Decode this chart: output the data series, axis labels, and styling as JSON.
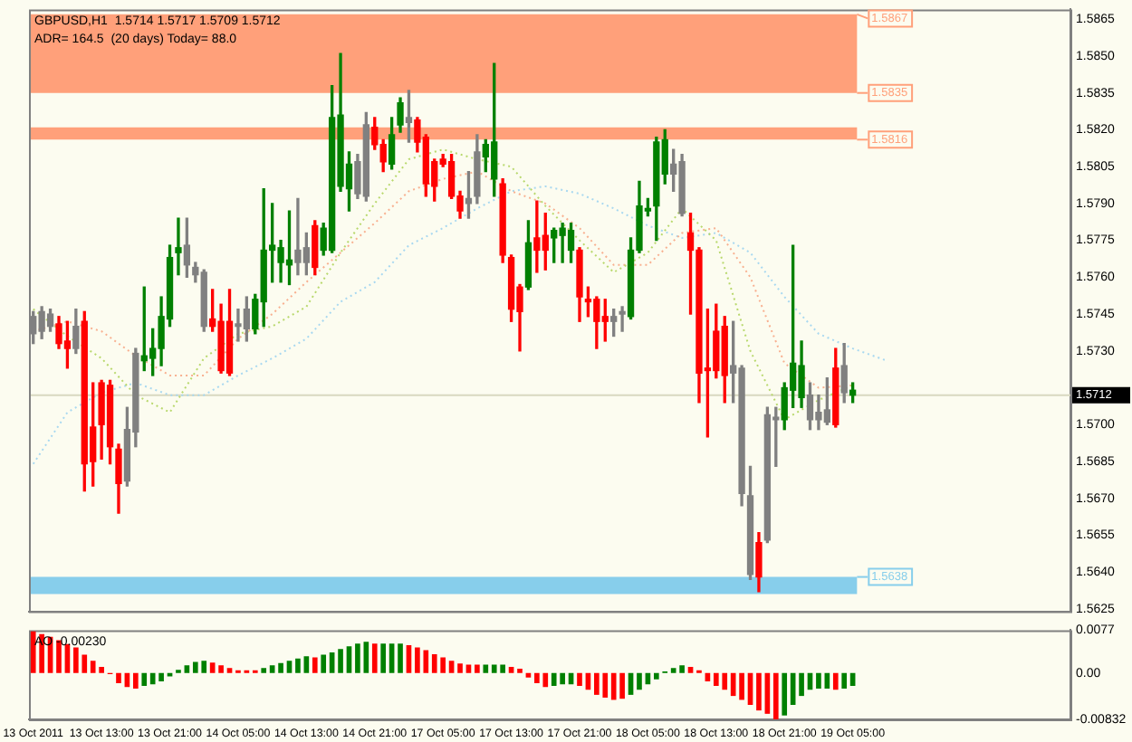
{
  "chart_data": [
    {
      "type": "candlestick",
      "title": "GBPUSD,H1  1.5714 1.5717 1.5709 1.5712",
      "annotations": [
        "ADR= 164.5  (20 days) Today= 88.0",
        "1.5867"
      ],
      "ohlc": [
        [
          1.5744,
          1.5746,
          1.5733,
          1.5737
        ],
        [
          1.5738,
          1.5748,
          1.5735,
          1.5746
        ],
        [
          1.5745,
          1.5747,
          1.5738,
          1.574
        ],
        [
          1.5741,
          1.5744,
          1.5731,
          1.5733
        ],
        [
          1.5734,
          1.5742,
          1.5723,
          1.5731
        ],
        [
          1.5731,
          1.5747,
          1.5729,
          1.574
        ],
        [
          1.5742,
          1.5746,
          1.5673,
          1.5684
        ],
        [
          1.5699,
          1.5717,
          1.5675,
          1.5685
        ],
        [
          1.5717,
          1.5718,
          1.5686,
          1.57
        ],
        [
          1.5716,
          1.5718,
          1.5684,
          1.5691
        ],
        [
          1.569,
          1.5692,
          1.5664,
          1.5676
        ],
        [
          1.5677,
          1.5707,
          1.5675,
          1.5698
        ],
        [
          1.5697,
          1.5731,
          1.5691,
          1.5729
        ],
        [
          1.5726,
          1.5756,
          1.5722,
          1.5728
        ],
        [
          1.5727,
          1.5739,
          1.572,
          1.5731
        ],
        [
          1.5731,
          1.5752,
          1.5724,
          1.5744
        ],
        [
          1.5743,
          1.5773,
          1.574,
          1.5768
        ],
        [
          1.577,
          1.5784,
          1.5761,
          1.5772
        ],
        [
          1.5773,
          1.5784,
          1.576,
          1.5765
        ],
        [
          1.5764,
          1.5766,
          1.5758,
          1.5761
        ],
        [
          1.5762,
          1.5763,
          1.5738,
          1.574
        ],
        [
          1.5743,
          1.5755,
          1.5738,
          1.574
        ],
        [
          1.5742,
          1.5749,
          1.5721,
          1.5722
        ],
        [
          1.5742,
          1.5755,
          1.572,
          1.5721
        ],
        [
          1.5741,
          1.5747,
          1.5734,
          1.574
        ],
        [
          1.5739,
          1.5752,
          1.5734,
          1.5747
        ],
        [
          1.5739,
          1.5753,
          1.5737,
          1.5751
        ],
        [
          1.575,
          1.5796,
          1.574,
          1.5771
        ],
        [
          1.5771,
          1.579,
          1.5758,
          1.5773
        ],
        [
          1.5766,
          1.5775,
          1.5758,
          1.5772
        ],
        [
          1.5765,
          1.5787,
          1.5757,
          1.5767
        ],
        [
          1.5766,
          1.5792,
          1.5761,
          1.5771
        ],
        [
          1.5766,
          1.5778,
          1.5761,
          1.5772
        ],
        [
          1.5781,
          1.5783,
          1.5761,
          1.5764
        ],
        [
          1.5771,
          1.5782,
          1.5769,
          1.578
        ],
        [
          1.5771,
          1.5838,
          1.577,
          1.5825
        ],
        [
          1.5797,
          1.5851,
          1.5795,
          1.5826
        ],
        [
          1.5796,
          1.5811,
          1.5787,
          1.5806
        ],
        [
          1.5794,
          1.581,
          1.5792,
          1.5807
        ],
        [
          1.5793,
          1.5827,
          1.5791,
          1.5822
        ],
        [
          1.5821,
          1.5825,
          1.5812,
          1.5814
        ],
        [
          1.5814,
          1.5816,
          1.5803,
          1.5807
        ],
        [
          1.5806,
          1.5825,
          1.5804,
          1.5818
        ],
        [
          1.5822,
          1.5833,
          1.5819,
          1.5831
        ],
        [
          1.5825,
          1.5836,
          1.5815,
          1.5823
        ],
        [
          1.5824,
          1.5825,
          1.5811,
          1.5815
        ],
        [
          1.5817,
          1.5818,
          1.5793,
          1.5798
        ],
        [
          1.5807,
          1.5808,
          1.5791,
          1.5797
        ],
        [
          1.5808,
          1.581,
          1.5805,
          1.5806
        ],
        [
          1.5807,
          1.581,
          1.5792,
          1.5793
        ],
        [
          1.5793,
          1.5795,
          1.5784,
          1.5787
        ],
        [
          1.579,
          1.5803,
          1.5784,
          1.5792
        ],
        [
          1.5793,
          1.5818,
          1.579,
          1.5811
        ],
        [
          1.5809,
          1.5816,
          1.5803,
          1.5814
        ],
        [
          1.58,
          1.5847,
          1.5793,
          1.5815
        ],
        [
          1.5798,
          1.58,
          1.5766,
          1.5769
        ],
        [
          1.5768,
          1.5769,
          1.5742,
          1.5747
        ],
        [
          1.5756,
          1.5757,
          1.573,
          1.5746
        ],
        [
          1.5756,
          1.5783,
          1.5755,
          1.5774
        ],
        [
          1.5776,
          1.5791,
          1.5762,
          1.5771
        ],
        [
          1.5777,
          1.5786,
          1.5763,
          1.5771
        ],
        [
          1.5776,
          1.578,
          1.5766,
          1.5779
        ],
        [
          1.5777,
          1.5782,
          1.5766,
          1.578
        ],
        [
          1.5771,
          1.5782,
          1.5766,
          1.5779
        ],
        [
          1.5771,
          1.5772,
          1.5742,
          1.5752
        ],
        [
          1.5751,
          1.5756,
          1.5744,
          1.575
        ],
        [
          1.5751,
          1.5752,
          1.5731,
          1.5742
        ],
        [
          1.5744,
          1.5751,
          1.5734,
          1.5742
        ],
        [
          1.5742,
          1.5747,
          1.5736,
          1.5744
        ],
        [
          1.5745,
          1.5748,
          1.5738,
          1.5746
        ],
        [
          1.5744,
          1.5776,
          1.5743,
          1.5771
        ],
        [
          1.5771,
          1.5799,
          1.577,
          1.5789
        ],
        [
          1.5787,
          1.5792,
          1.5785,
          1.5788
        ],
        [
          1.5789,
          1.5817,
          1.5775,
          1.5815
        ],
        [
          1.5802,
          1.582,
          1.5798,
          1.5816
        ],
        [
          1.5806,
          1.5812,
          1.5795,
          1.5802
        ],
        [
          1.5807,
          1.581,
          1.5785,
          1.5786
        ],
        [
          1.5778,
          1.5786,
          1.5745,
          1.5771
        ],
        [
          1.5771,
          1.5772,
          1.5709,
          1.5721
        ],
        [
          1.5723,
          1.5747,
          1.5695,
          1.5722
        ],
        [
          1.5738,
          1.5749,
          1.5719,
          1.5722
        ],
        [
          1.574,
          1.5744,
          1.5709,
          1.572
        ],
        [
          1.5724,
          1.5742,
          1.5709,
          1.5721
        ],
        [
          1.5723,
          1.5724,
          1.5667,
          1.5672
        ],
        [
          1.5671,
          1.5683,
          1.5637,
          1.5639
        ],
        [
          1.5652,
          1.5656,
          1.5632,
          1.5638
        ],
        [
          1.5653,
          1.5707,
          1.5652,
          1.5704
        ],
        [
          1.5702,
          1.5707,
          1.5683,
          1.5703
        ],
        [
          1.5702,
          1.5717,
          1.5698,
          1.5715
        ],
        [
          1.5714,
          1.5773,
          1.5707,
          1.5725
        ],
        [
          1.5711,
          1.5734,
          1.5707,
          1.5724
        ],
        [
          1.5712,
          1.5717,
          1.5698,
          1.5702
        ],
        [
          1.5702,
          1.5712,
          1.5698,
          1.5705
        ],
        [
          1.5706,
          1.5719,
          1.57,
          1.5701
        ],
        [
          1.5723,
          1.5731,
          1.5699,
          1.57
        ],
        [
          1.5724,
          1.5733,
          1.5709,
          1.5713
        ],
        [
          1.5712,
          1.5717,
          1.5709,
          1.5714
        ],
        null,
        null,
        null,
        null,
        null,
        null,
        null,
        null,
        null,
        null,
        null,
        null,
        null,
        null,
        null,
        null,
        null,
        null,
        null,
        null,
        null,
        null,
        null,
        null,
        null
      ],
      "colors": [
        "#808080",
        "#808080",
        "#808080",
        "#ff0000",
        "#ff0000",
        "#808080",
        "#ff0000",
        "#ff0000",
        "#ff0000",
        "#ff0000",
        "#ff0000",
        "#808080",
        "#808080",
        "#008000",
        "#008000",
        "#008000",
        "#008000",
        "#008000",
        "#808080",
        "#808080",
        "#808080",
        "#ff0000",
        "#ff0000",
        "#ff0000",
        "#808080",
        "#808080",
        "#008000",
        "#008000",
        "#008000",
        "#008000",
        "#008000",
        "#808080",
        "#808080",
        "#ff0000",
        "#008000",
        "#008000",
        "#008000",
        "#008000",
        "#808080",
        "#808080",
        "#ff0000",
        "#ff0000",
        "#008000",
        "#008000",
        "#808080",
        "#ff0000",
        "#ff0000",
        "#ff0000",
        "#ff0000",
        "#ff0000",
        "#ff0000",
        "#808080",
        "#808080",
        "#008000",
        "#008000",
        "#ff0000",
        "#ff0000",
        "#ff0000",
        "#008000",
        "#ff0000",
        "#ff0000",
        "#008000",
        "#008000",
        "#008000",
        "#ff0000",
        "#ff0000",
        "#ff0000",
        "#ff0000",
        "#808080",
        "#808080",
        "#008000",
        "#008000",
        "#008000",
        "#008000",
        "#008000",
        "#808080",
        "#808080",
        "#ff0000",
        "#ff0000",
        "#ff0000",
        "#ff0000",
        "#ff0000",
        "#808080",
        "#808080",
        "#808080",
        "#ff0000",
        "#808080",
        "#808080",
        "#008000",
        "#008000",
        "#008000",
        "#808080",
        "#808080",
        "#808080",
        "#ff0000",
        "#808080",
        "#008000",
        null,
        null,
        null,
        null,
        null,
        null,
        null,
        null,
        null,
        null,
        null,
        null,
        null,
        null,
        null,
        null,
        null,
        null,
        null,
        null,
        null,
        null,
        null,
        null,
        null
      ],
      "series": [
        {
          "type": "line",
          "color": "#b8d86c",
          "line_style": "dotted",
          "values": [
            1.5747,
            null,
            null,
            null,
            1.5736,
            null,
            null,
            null,
            1.5727,
            null,
            null,
            null,
            1.5712,
            null,
            null,
            null,
            1.5705,
            null,
            null,
            null,
            1.5727,
            null,
            null,
            null,
            1.5737,
            null,
            null,
            null,
            1.574,
            null,
            null,
            null,
            1.5748,
            null,
            null,
            null,
            1.577,
            null,
            null,
            null,
            1.579,
            null,
            null,
            null,
            1.5808,
            null,
            null,
            null,
            1.5812,
            null,
            null,
            null,
            1.5808,
            null,
            null,
            null,
            1.5805,
            null,
            null,
            null,
            1.5789,
            null,
            null,
            null,
            1.5775,
            null,
            null,
            null,
            1.5762,
            null,
            null,
            null,
            1.577,
            null,
            null,
            null,
            1.5788,
            null,
            null,
            null,
            1.5775,
            null,
            null,
            null,
            1.573,
            null,
            null,
            null,
            1.5702,
            null,
            null,
            null,
            1.571,
            null,
            null,
            null,
            1.5716,
            null,
            null,
            null,
            null,
            null,
            null,
            null,
            null,
            null,
            null,
            null,
            null,
            null,
            null,
            null,
            null,
            null,
            null,
            null,
            null,
            null,
            null,
            null,
            null,
            null
          ]
        },
        {
          "type": "line",
          "color": "#f8b090",
          "line_style": "dotted",
          "values": [
            1.5738,
            null,
            null,
            null,
            1.5742,
            null,
            null,
            null,
            1.5738,
            null,
            null,
            null,
            1.5728,
            null,
            null,
            null,
            1.572,
            null,
            null,
            null,
            1.572,
            null,
            null,
            null,
            1.5735,
            null,
            null,
            null,
            1.5745,
            null,
            null,
            null,
            1.5758,
            null,
            null,
            null,
            1.577,
            null,
            null,
            null,
            1.5782,
            null,
            null,
            null,
            1.5795,
            null,
            null,
            null,
            1.58,
            null,
            null,
            null,
            1.5803,
            null,
            null,
            null,
            1.5795,
            null,
            null,
            null,
            1.579,
            null,
            null,
            null,
            1.578,
            null,
            null,
            null,
            1.5765,
            null,
            null,
            null,
            1.5765,
            null,
            null,
            null,
            1.5778,
            null,
            null,
            null,
            1.578,
            null,
            null,
            null,
            1.576,
            null,
            null,
            null,
            1.5725,
            null,
            null,
            null,
            1.5715,
            null,
            null,
            null,
            1.5716,
            null,
            null,
            null,
            null,
            null,
            null,
            null,
            null,
            null,
            null,
            null,
            null,
            null,
            null,
            null,
            null,
            null,
            null,
            null,
            null,
            null,
            null,
            null,
            null,
            null
          ]
        },
        {
          "type": "line",
          "color": "#a8d8f0",
          "line_style": "dotted",
          "values": [
            1.5684,
            null,
            null,
            null,
            1.5705,
            null,
            null,
            null,
            1.5713,
            null,
            null,
            null,
            1.5717,
            null,
            null,
            null,
            1.5712,
            null,
            null,
            null,
            1.5712,
            null,
            null,
            null,
            1.572,
            null,
            null,
            null,
            1.5727,
            null,
            null,
            null,
            1.5735,
            null,
            null,
            null,
            1.575,
            null,
            null,
            null,
            1.5758,
            null,
            null,
            null,
            1.5773,
            null,
            null,
            null,
            1.578,
            null,
            null,
            null,
            1.5788,
            null,
            null,
            null,
            1.5795,
            null,
            null,
            null,
            1.5797,
            null,
            null,
            null,
            1.5794,
            null,
            null,
            null,
            1.5788,
            null,
            null,
            null,
            1.5781,
            null,
            null,
            null,
            1.5776,
            null,
            null,
            null,
            1.5778,
            null,
            null,
            null,
            1.577,
            null,
            null,
            null,
            1.5752,
            null,
            null,
            null,
            1.5737,
            null,
            null,
            null,
            1.5731,
            null,
            null,
            null,
            1.5726,
            null,
            null,
            null,
            null,
            null,
            null,
            null,
            null,
            null,
            null,
            null,
            null,
            null,
            null,
            null,
            null,
            null,
            null,
            null,
            null,
            null
          ]
        }
      ],
      "ylim": [
        1.5624,
        1.5869
      ],
      "yticks": [
        1.5625,
        {
          "value": 1.564,
          "label": "1.5640"
        },
        1.5655,
        {
          "value": 1.567,
          "label": "1.5670"
        },
        1.5685,
        {
          "value": 1.57,
          "label": "1.5700"
        },
        {
          "value": 1.573,
          "label": "1.5730"
        },
        1.5745,
        {
          "value": 1.576,
          "label": "1.5760"
        },
        1.5775,
        {
          "value": 1.579,
          "label": "1.5790"
        },
        1.5805,
        {
          "value": 1.582,
          "label": "1.5820"
        },
        1.5835,
        {
          "value": 1.585,
          "label": "1.5850"
        },
        1.5865
      ],
      "bands": [
        {
          "axis": "y",
          "from": 1.5835,
          "to": 1.5867,
          "label": "1.5835",
          "color": "#ffa07a"
        },
        {
          "axis": "y",
          "from": 1.5816,
          "to": 1.5821,
          "label": "1.5816",
          "color": "#ffa07a"
        },
        {
          "axis": "y",
          "from": 1.5638,
          "to": 1.5631,
          "label": "1.5638",
          "color": "#87ceeb"
        }
      ],
      "ref_lines": [
        {
          "axis": "y",
          "value": 1.5712,
          "label": "1.5712",
          "color": "#d8d8c0"
        }
      ],
      "tick_labels": "y",
      "grid": false,
      "legend": false
    },
    {
      "type": "bar",
      "title": "AO -0.00230",
      "categories": [
        "13 Oct 2011",
        null,
        null,
        null,
        null,
        null,
        null,
        null,
        "13 Oct 13:00",
        null,
        null,
        null,
        null,
        null,
        null,
        null,
        "13 Oct 21:00",
        null,
        null,
        null,
        null,
        null,
        null,
        null,
        "14 Oct 05:00",
        null,
        null,
        null,
        null,
        null,
        null,
        null,
        "14 Oct 13:00",
        null,
        null,
        null,
        null,
        null,
        null,
        null,
        "14 Oct 21:00",
        null,
        null,
        null,
        null,
        null,
        null,
        null,
        "17 Oct 05:00",
        null,
        null,
        null,
        null,
        null,
        null,
        null,
        "17 Oct 13:00",
        null,
        null,
        null,
        null,
        null,
        null,
        null,
        "17 Oct 21:00",
        null,
        null,
        null,
        null,
        null,
        null,
        null,
        "18 Oct 05:00",
        null,
        null,
        null,
        null,
        null,
        null,
        null,
        "18 Oct 13:00",
        null,
        null,
        null,
        null,
        null,
        null,
        null,
        "18 Oct 21:00",
        null,
        null,
        null,
        null,
        null,
        null,
        null,
        "19 Oct 05:00",
        null,
        null,
        null,
        null,
        null,
        null,
        null,
        null,
        null,
        null,
        null,
        null,
        null,
        null,
        null,
        null,
        null,
        null,
        null,
        null,
        null,
        null,
        null,
        null,
        null
      ],
      "values": [
        0.0075,
        0.007,
        0.0065,
        0.0059,
        0.0052,
        0.0046,
        0.0033,
        0.0022,
        0.0011,
        -0.0002,
        -0.0018,
        -0.0025,
        -0.0028,
        -0.0023,
        -0.002,
        -0.0015,
        -0.0006,
        0.0006,
        0.0014,
        0.002,
        0.0022,
        0.0019,
        0.0014,
        0.0009,
        0.0005,
        0.0005,
        0.0005,
        0.0009,
        0.0014,
        0.0018,
        0.0022,
        0.0026,
        0.003,
        0.0028,
        0.0033,
        0.0037,
        0.0043,
        0.0048,
        0.0053,
        0.0056,
        0.0053,
        0.0053,
        0.0053,
        0.0053,
        0.005,
        0.0046,
        0.0041,
        0.0034,
        0.0028,
        0.0022,
        0.0017,
        0.0015,
        0.0015,
        0.0015,
        0.0015,
        0.0015,
        0.0011,
        0.0008,
        -0.0008,
        -0.0018,
        -0.0025,
        -0.0023,
        -0.002,
        -0.002,
        -0.0023,
        -0.003,
        -0.0039,
        -0.0044,
        -0.0048,
        -0.0046,
        -0.0039,
        -0.003,
        -0.002,
        -0.0011,
        0.0003,
        0.0009,
        0.0014,
        0.0011,
        0.0005,
        -0.0015,
        -0.0023,
        -0.003,
        -0.0041,
        -0.0048,
        -0.0057,
        -0.0067,
        -0.0073,
        -0.0083,
        -0.0076,
        -0.0057,
        -0.0041,
        -0.003,
        -0.0028,
        -0.0028,
        -0.003,
        -0.0028,
        -0.0023,
        null,
        null,
        null,
        null,
        null,
        null,
        null,
        null,
        null,
        null,
        null,
        null,
        null,
        null,
        null,
        null,
        null,
        null,
        null,
        null,
        null,
        null,
        null,
        null,
        null
      ],
      "colors": [
        "#ff0000",
        "#ff0000",
        "#ff0000",
        "#ff0000",
        "#ff0000",
        "#ff0000",
        "#ff0000",
        "#ff0000",
        "#ff0000",
        "#ff0000",
        "#ff0000",
        "#ff0000",
        "#ff0000",
        "#008000",
        "#008000",
        "#008000",
        "#008000",
        "#008000",
        "#008000",
        "#008000",
        "#008000",
        "#ff0000",
        "#ff0000",
        "#ff0000",
        "#ff0000",
        "#ff0000",
        "#ff0000",
        "#008000",
        "#008000",
        "#008000",
        "#008000",
        "#008000",
        "#008000",
        "#ff0000",
        "#008000",
        "#008000",
        "#008000",
        "#008000",
        "#008000",
        "#008000",
        "#ff0000",
        "#008000",
        "#008000",
        "#008000",
        "#ff0000",
        "#ff0000",
        "#ff0000",
        "#ff0000",
        "#ff0000",
        "#ff0000",
        "#ff0000",
        "#ff0000",
        "#ff0000",
        "#008000",
        "#008000",
        "#008000",
        "#ff0000",
        "#ff0000",
        "#ff0000",
        "#ff0000",
        "#ff0000",
        "#008000",
        "#008000",
        "#008000",
        "#ff0000",
        "#ff0000",
        "#ff0000",
        "#ff0000",
        "#ff0000",
        "#ff0000",
        "#008000",
        "#008000",
        "#008000",
        "#008000",
        "#008000",
        "#008000",
        "#008000",
        "#ff0000",
        "#ff0000",
        "#ff0000",
        "#ff0000",
        "#ff0000",
        "#ff0000",
        "#ff0000",
        "#ff0000",
        "#ff0000",
        "#ff0000",
        "#ff0000",
        "#008000",
        "#008000",
        "#008000",
        "#008000",
        "#008000",
        "#008000",
        "#ff0000",
        "#008000",
        "#008000",
        null,
        null,
        null,
        null,
        null,
        null,
        null,
        null,
        null,
        null,
        null,
        null,
        null,
        null,
        null,
        null,
        null,
        null,
        null,
        null,
        null,
        null,
        null,
        null,
        null
      ],
      "ylim": [
        -0.00832,
        0.0077
      ],
      "yticks": [
        0.0077,
        {
          "value": 0,
          "label": "0.00"
        },
        -0.00832
      ],
      "grid": false,
      "legend": false
    }
  ]
}
